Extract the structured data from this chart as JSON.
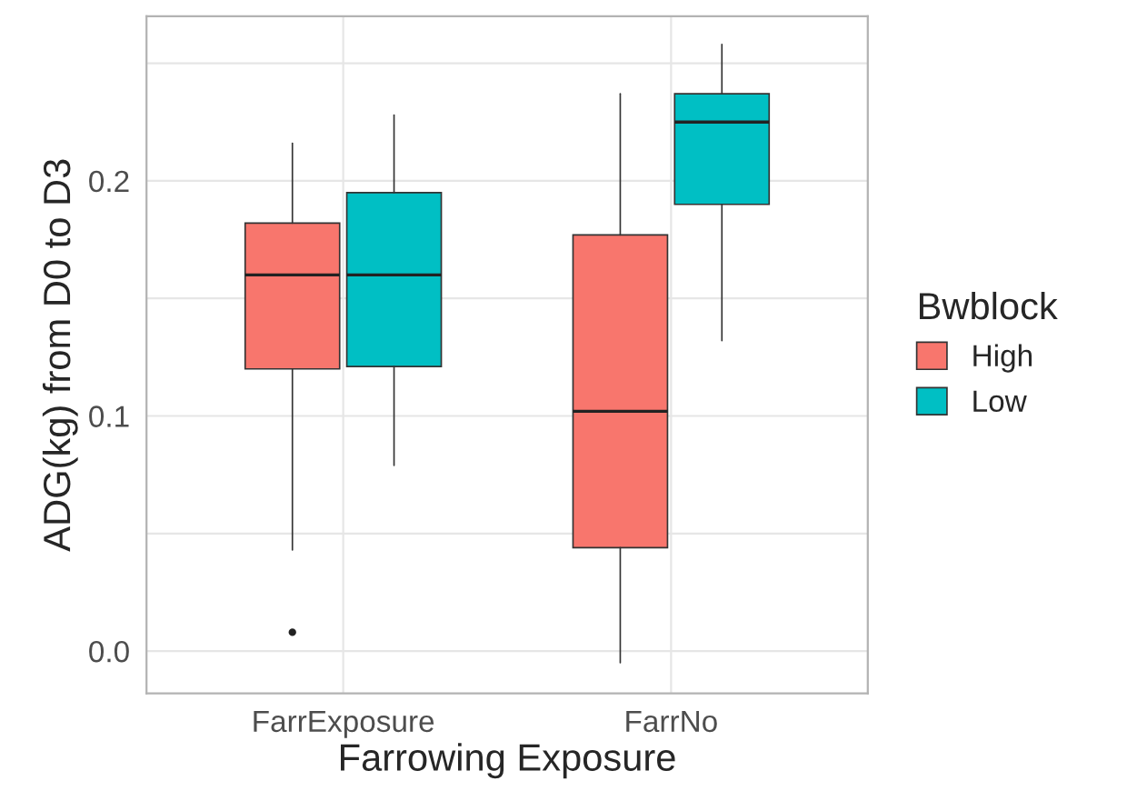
{
  "chart_data": {
    "type": "box",
    "xlabel": "Farrowing Exposure",
    "ylabel": "ADG(kg) from D0 to D3",
    "legend_title": "Bwblock",
    "categories": [
      "FarrExposure",
      "FarrNo"
    ],
    "series": [
      {
        "name": "High",
        "color": "#f8766d",
        "boxes": [
          {
            "low": 0.043,
            "q1": 0.12,
            "median": 0.16,
            "q3": 0.182,
            "high": 0.216,
            "outliers": [
              0.008
            ]
          },
          {
            "low": -0.005,
            "q1": 0.044,
            "median": 0.102,
            "q3": 0.177,
            "high": 0.237
          }
        ]
      },
      {
        "name": "Low",
        "color": "#00bfc4",
        "boxes": [
          {
            "low": 0.079,
            "q1": 0.121,
            "median": 0.16,
            "q3": 0.195,
            "high": 0.228
          },
          {
            "low": 0.132,
            "q1": 0.19,
            "median": 0.225,
            "q3": 0.237,
            "high": 0.258
          }
        ]
      }
    ],
    "ylim": [
      -0.018,
      0.27
    ],
    "yticks": [
      {
        "value": 0.0,
        "label": "0.0"
      },
      {
        "value": 0.05,
        "label": null
      },
      {
        "value": 0.1,
        "label": "0.1"
      },
      {
        "value": 0.15,
        "label": null
      },
      {
        "value": 0.2,
        "label": "0.2"
      },
      {
        "value": 0.25,
        "label": null
      }
    ],
    "grid": true,
    "legend": "right"
  }
}
